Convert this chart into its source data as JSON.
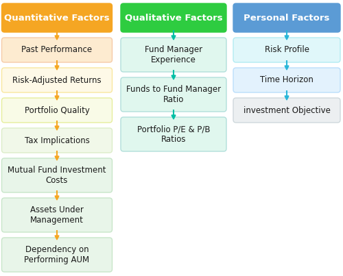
{
  "columns": [
    {
      "header": "Quantitative Factors",
      "header_bg": "#F5A623",
      "header_text_color": "#FFFFFF",
      "arrow_color": "#F5A623",
      "items": [
        {
          "text": "Past Performance",
          "bg": "#FDEBD0",
          "border": "#F5CBA7"
        },
        {
          "text": "Risk-Adjusted Returns",
          "bg": "#FEF9E7",
          "border": "#F9E79F"
        },
        {
          "text": "Portfolio Quality",
          "bg": "#F9FBE7",
          "border": "#E6EE9C"
        },
        {
          "text": "Tax Implications",
          "bg": "#F1F8E9",
          "border": "#DCEDC8"
        },
        {
          "text": "Mutual Fund Investment\nCosts",
          "bg": "#E8F5E9",
          "border": "#C8E6C9"
        },
        {
          "text": "Assets Under\nManagement",
          "bg": "#E8F5E9",
          "border": "#C8E6C9"
        },
        {
          "text": "Dependency on\nPerforming AUM",
          "bg": "#E8F5E9",
          "border": "#C8E6C9"
        }
      ]
    },
    {
      "header": "Qualitative Factors",
      "header_bg": "#2ECC40",
      "header_text_color": "#FFFFFF",
      "arrow_color": "#00BFA5",
      "items": [
        {
          "text": "Fund Manager\nExperience",
          "bg": "#E0F7EE",
          "border": "#B2DFDB"
        },
        {
          "text": "Funds to Fund Manager\nRatio",
          "bg": "#E0F7EE",
          "border": "#B2DFDB"
        },
        {
          "text": "Portfolio P/E & P/B\nRatios",
          "bg": "#E0F7EE",
          "border": "#B2DFDB"
        }
      ]
    },
    {
      "header": "Personal Factors",
      "header_bg": "#5B9BD5",
      "header_text_color": "#FFFFFF",
      "arrow_color": "#29B6D8",
      "items": [
        {
          "text": "Risk Profile",
          "bg": "#E0F7FA",
          "border": "#B2EBF2"
        },
        {
          "text": "Time Horizon",
          "bg": "#E3F2FD",
          "border": "#BBDEFB"
        },
        {
          "text": "investment Objective",
          "bg": "#ECEFF1",
          "border": "#CFD8DC"
        }
      ]
    }
  ],
  "background_color": "#FFFFFF",
  "fig_width": 5.0,
  "fig_height": 4.03
}
